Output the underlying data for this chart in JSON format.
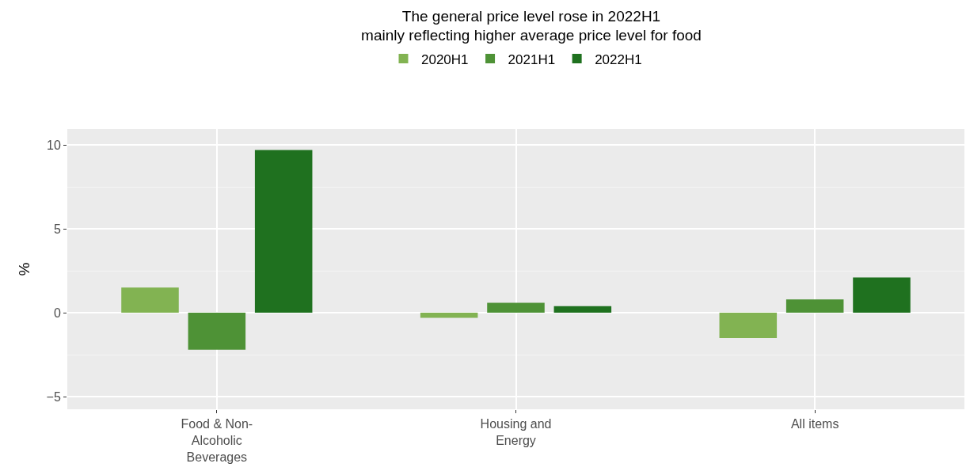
{
  "chart_data": {
    "type": "bar",
    "title": "The general price level rose in 2022H1",
    "subtitle": "mainly reflecting higher average price level for food",
    "ylabel": "%",
    "categories": [
      "Food & Non-Alcoholic Beverages",
      "Housing and Energy",
      "All items"
    ],
    "series": [
      {
        "name": "2020H1",
        "color": "#82b352",
        "values": [
          1.5,
          -0.3,
          -1.5
        ]
      },
      {
        "name": "2021H1",
        "color": "#4e9236",
        "values": [
          -2.2,
          0.6,
          0.8
        ]
      },
      {
        "name": "2022H1",
        "color": "#1f711f",
        "values": [
          9.7,
          0.4,
          2.1
        ]
      }
    ],
    "ylim": [
      -5.75,
      10.95
    ],
    "yticks": [
      -5,
      0,
      5,
      10
    ],
    "grid": true,
    "legend": "top"
  }
}
